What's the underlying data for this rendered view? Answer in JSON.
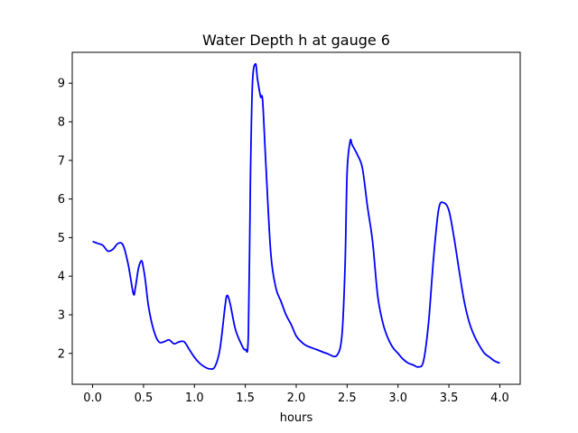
{
  "chart_data": {
    "type": "line",
    "title": "Water Depth h at gauge 6",
    "xlabel": "hours",
    "ylabel": "",
    "xlim": [
      -0.2,
      4.2
    ],
    "ylim": [
      1.2,
      9.8
    ],
    "x_ticks": [
      0.0,
      0.5,
      1.0,
      1.5,
      2.0,
      2.5,
      3.0,
      3.5,
      4.0
    ],
    "x_tick_labels": [
      "0.0",
      "0.5",
      "1.0",
      "1.5",
      "2.0",
      "2.5",
      "3.0",
      "3.5",
      "4.0"
    ],
    "y_ticks": [
      2,
      3,
      4,
      5,
      6,
      7,
      8,
      9
    ],
    "y_tick_labels": [
      "2",
      "3",
      "4",
      "5",
      "6",
      "7",
      "8",
      "9"
    ],
    "grid": false,
    "series": [
      {
        "color": "#0000ff",
        "x": [
          0.0,
          0.05,
          0.1,
          0.15,
          0.2,
          0.25,
          0.3,
          0.35,
          0.4,
          0.42,
          0.45,
          0.48,
          0.5,
          0.52,
          0.55,
          0.6,
          0.65,
          0.7,
          0.75,
          0.8,
          0.85,
          0.9,
          0.95,
          1.0,
          1.05,
          1.1,
          1.15,
          1.2,
          1.25,
          1.3,
          1.32,
          1.35,
          1.4,
          1.45,
          1.5,
          1.53,
          1.55,
          1.57,
          1.6,
          1.62,
          1.65,
          1.67,
          1.7,
          1.75,
          1.8,
          1.85,
          1.9,
          1.95,
          2.0,
          2.05,
          2.1,
          2.2,
          2.3,
          2.4,
          2.45,
          2.48,
          2.5,
          2.53,
          2.55,
          2.6,
          2.65,
          2.7,
          2.75,
          2.8,
          2.85,
          2.9,
          2.95,
          3.0,
          3.05,
          3.1,
          3.15,
          3.2,
          3.25,
          3.3,
          3.35,
          3.4,
          3.45,
          3.5,
          3.55,
          3.6,
          3.65,
          3.7,
          3.75,
          3.8,
          3.85,
          3.9,
          3.95,
          4.0
        ],
        "values": [
          4.9,
          4.85,
          4.8,
          4.65,
          4.7,
          4.85,
          4.8,
          4.3,
          3.55,
          3.7,
          4.2,
          4.4,
          4.2,
          3.85,
          3.2,
          2.6,
          2.3,
          2.3,
          2.35,
          2.25,
          2.3,
          2.3,
          2.1,
          1.9,
          1.75,
          1.65,
          1.6,
          1.65,
          2.1,
          3.2,
          3.5,
          3.3,
          2.65,
          2.3,
          2.1,
          2.5,
          6.5,
          9.0,
          9.5,
          9.1,
          8.65,
          8.55,
          7.0,
          4.6,
          3.7,
          3.35,
          3.0,
          2.75,
          2.45,
          2.3,
          2.2,
          2.1,
          2.0,
          1.95,
          2.5,
          4.3,
          6.7,
          7.5,
          7.4,
          7.15,
          6.8,
          5.8,
          4.9,
          3.5,
          2.8,
          2.4,
          2.15,
          2.0,
          1.85,
          1.75,
          1.7,
          1.65,
          1.8,
          2.8,
          4.5,
          5.75,
          5.9,
          5.7,
          5.0,
          4.15,
          3.35,
          2.8,
          2.45,
          2.2,
          2.0,
          1.9,
          1.8,
          1.75
        ]
      }
    ]
  }
}
